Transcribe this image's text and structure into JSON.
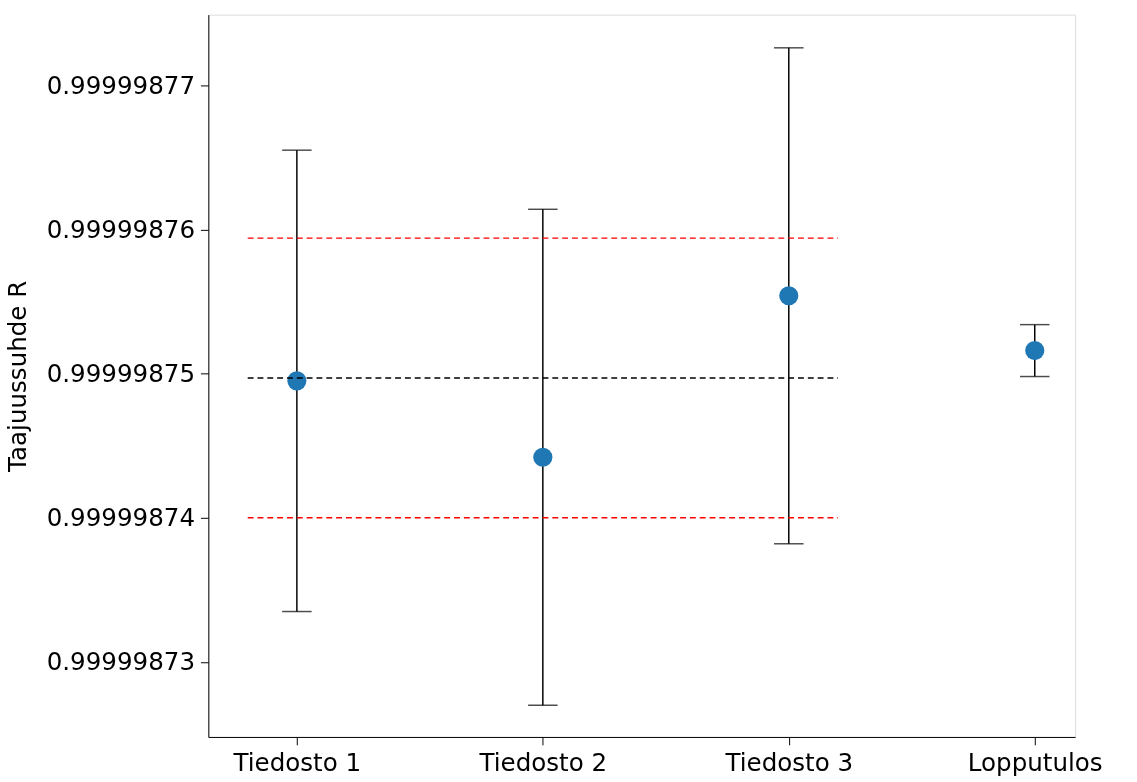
{
  "chart_data": {
    "type": "scatter",
    "ylabel": "Taajuussuhde R",
    "categories": [
      "Tiedosto 1",
      "Tiedosto 2",
      "Tiedosto 3",
      "Lopputulos"
    ],
    "series": [
      {
        "color": "#1f77b4",
        "values": [
          0.9999987495,
          0.9999987442,
          0.9999987554,
          0.9999987516
        ],
        "errors": [
          1.6e-08,
          1.72e-08,
          1.72e-08,
          1.8e-09
        ]
      }
    ],
    "ylim": [
      0.9999987248,
      0.9999987749
    ],
    "yticks": [
      0.99999873,
      0.99999874,
      0.99999875,
      0.99999876,
      0.99999877
    ],
    "ref_lines": [
      {
        "axis": "y",
        "value": 0.9999987497,
        "color": "#000000",
        "line_style": "dashed"
      },
      {
        "axis": "y",
        "value": 0.9999987594,
        "color": "#ff0000",
        "line_style": "dashed"
      },
      {
        "axis": "y",
        "value": 0.99999874,
        "color": "#ff0000",
        "line_style": "dashed"
      }
    ],
    "grid": false,
    "marker": "circle"
  }
}
